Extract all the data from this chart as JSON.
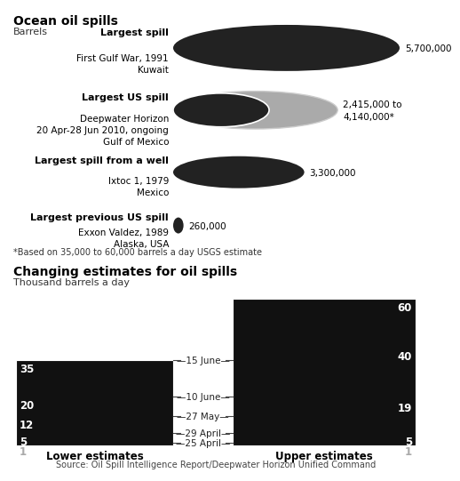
{
  "title1": "Ocean oil spills",
  "subtitle1": "Barrels",
  "footnote": "*Based on 35,000 to 60,000 barrels a day USGS estimate",
  "title2": "Changing estimates for oil spills",
  "subtitle2": "Thousand barrels a day",
  "source": "Source: Oil Spill Intelligence Report/Deepwater Horizon Unified Command",
  "spills": [
    {
      "label_bold": "Largest spill",
      "label_sub": "First Gulf War, 1991\nKuwait",
      "value": 5700000,
      "value_label": "5,700,000",
      "color": "#222222",
      "is_range": false
    },
    {
      "label_bold": "Largest US spill",
      "label_sub": "Deepwater Horizon\n20 Apr-28 Jun 2010, ongoing\nGulf of Mexico",
      "value": 2415000,
      "value_max": 4140000,
      "value_label": "2,415,000 to\n4,140,000*",
      "color": "#222222",
      "outline_color": "#aaaaaa",
      "is_range": true
    },
    {
      "label_bold": "Largest spill from a well",
      "label_sub": "Ixtoc 1, 1979\nMexico",
      "value": 3300000,
      "value_label": "3,300,000",
      "color": "#222222",
      "is_range": false
    },
    {
      "label_bold": "Largest previous US spill",
      "label_sub": "Exxon Valdez, 1989\nAlaska, USA",
      "value": 260000,
      "value_label": "260,000",
      "color": "#222222",
      "is_range": false
    }
  ],
  "max_spill": 5700000,
  "bar_dates": [
    "25 April",
    "29 April",
    "27 May",
    "10 June",
    "15 June"
  ],
  "lower_values": [
    1,
    5,
    12,
    20,
    35
  ],
  "upper_values": [
    1,
    5,
    19,
    40,
    60
  ],
  "bar_colors": [
    "#bbbbbb",
    "#888888",
    "#555555",
    "#333333",
    "#111111"
  ],
  "bg_color": "#ffffff"
}
